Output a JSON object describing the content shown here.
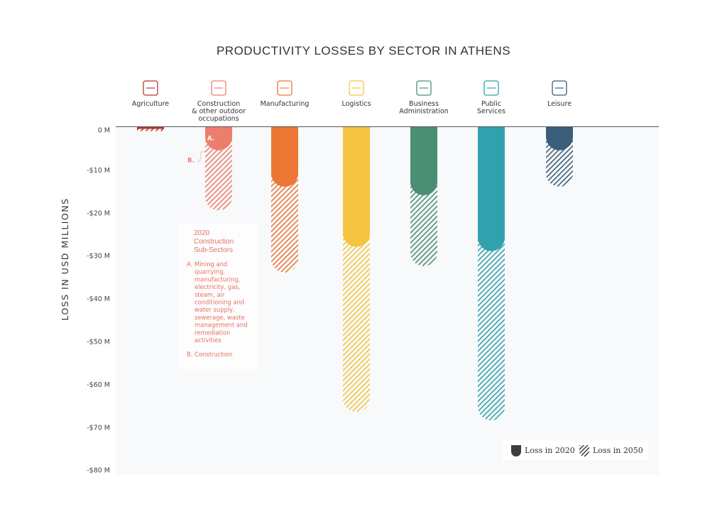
{
  "chart_data": {
    "type": "bar",
    "title": "PRODUCTIVITY LOSSES BY SECTOR IN ATHENS",
    "ylabel": "LOSS IN USD MILLIONS",
    "xlabel": "",
    "ylim": [
      -80,
      0
    ],
    "yticks": [
      0,
      -10,
      -20,
      -30,
      -40,
      -50,
      -60,
      -70,
      -80
    ],
    "ytick_labels": [
      "0 M",
      "-$10 M",
      "-$20 M",
      "-$30 M",
      "-$40 M",
      "-$50 M",
      "-$60 M",
      "-$70 M",
      "-$80 M"
    ],
    "categories": [
      {
        "label": [
          "Agriculture"
        ],
        "icon": "plant-icon",
        "color": "#b5372d"
      },
      {
        "label": [
          "Construction",
          "& other outdoor",
          "occupations"
        ],
        "icon": "crane-icon",
        "color": "#ee7e6c"
      },
      {
        "label": [
          "Manufacturing"
        ],
        "icon": "conveyor-icon",
        "color": "#ec7634"
      },
      {
        "label": [
          "Logistics"
        ],
        "icon": "truck-icon",
        "color": "#f4c33f"
      },
      {
        "label": [
          "Business",
          "Administration"
        ],
        "icon": "briefcase-icon",
        "color": "#4a8e73"
      },
      {
        "label": [
          "Public",
          "Services"
        ],
        "icon": "building-icon",
        "color": "#31a2ad"
      },
      {
        "label": [
          "Leisure"
        ],
        "icon": "umbrella-icon",
        "color": "#3a5e79"
      }
    ],
    "series": [
      {
        "name": "Loss in 2020",
        "values": [
          -0.5,
          -6.5,
          -14,
          -28,
          -16,
          -29,
          -5.5
        ]
      },
      {
        "name": "Loss in 2050",
        "values": [
          -1,
          -19.5,
          -34,
          -66.5,
          -32.5,
          -68.5,
          -14
        ]
      }
    ],
    "construction_subsectors_2020": {
      "A": -5.5,
      "B": -1
    },
    "bar_markers": {
      "a": "A.",
      "b": "B."
    },
    "annotation": {
      "heading": [
        "2020",
        "Construction",
        "Sub-Sectors"
      ],
      "a_marker": "A.",
      "a_lines": [
        "Mining and",
        "quarrying,",
        "manufacturing,",
        "electricity, gas,",
        "steam, air",
        "conditioning and",
        "water supply,",
        "sewerage, waste",
        "management and",
        "remediation",
        "activities"
      ],
      "b_marker": "B.",
      "b_text": "Construction"
    },
    "legend": {
      "position": "bottom-right",
      "items": [
        "Loss in 2020",
        "Loss in 2050"
      ]
    },
    "grid": false
  }
}
